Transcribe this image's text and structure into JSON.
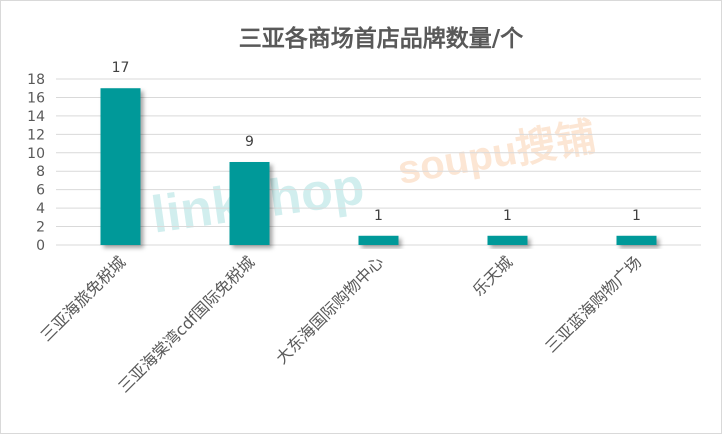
{
  "chart_data": {
    "type": "bar",
    "title": "三亚各商场首店品牌数量/个",
    "categories": [
      "三亚海旅免税城",
      "三亚海棠湾cdf国际免税城",
      "大东海国际购物中心",
      "乐天城",
      "三亚蓝海购物广场"
    ],
    "values": [
      17,
      9,
      1,
      1,
      1
    ],
    "data_labels": [
      "17",
      "9",
      "1",
      "1",
      "1"
    ],
    "ylim": [
      0,
      18
    ],
    "yticks": [
      "0",
      "2",
      "4",
      "6",
      "8",
      "10",
      "12",
      "14",
      "16",
      "18"
    ],
    "xlabel": "",
    "ylabel": "",
    "grid": true,
    "legend": "none",
    "bar_color": "#009999"
  },
  "watermarks": {
    "linkshop": "linkshop 联商网 .com",
    "soupu": "soupu 搜铺 .com"
  }
}
